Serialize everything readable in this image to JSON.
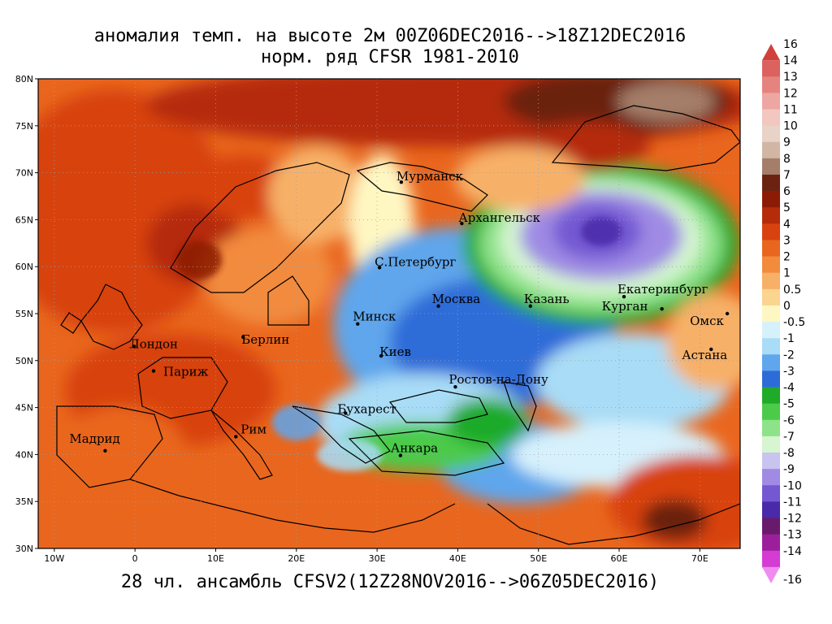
{
  "header": {
    "title_line1": "аномалия темп. на высоте 2м 00Z06DEC2016-->18Z12DEC2016",
    "title_line2": "норм. ряд CFSR 1981-2010"
  },
  "footer": {
    "caption": "28 чл. ансамбль CFSV2(12Z28NOV2016-->06Z05DEC2016)"
  },
  "map": {
    "lon_range": [
      -12,
      75
    ],
    "lat_range": [
      30,
      80
    ],
    "lon_ticks": [
      {
        "value": -10,
        "label": "10W"
      },
      {
        "value": 0,
        "label": "0"
      },
      {
        "value": 10,
        "label": "10E"
      },
      {
        "value": 20,
        "label": "20E"
      },
      {
        "value": 30,
        "label": "30E"
      },
      {
        "value": 40,
        "label": "40E"
      },
      {
        "value": 50,
        "label": "50E"
      },
      {
        "value": 60,
        "label": "60E"
      },
      {
        "value": 70,
        "label": "70E"
      }
    ],
    "lat_ticks": [
      {
        "value": 30,
        "label": "30N"
      },
      {
        "value": 35,
        "label": "35N"
      },
      {
        "value": 40,
        "label": "40N"
      },
      {
        "value": 45,
        "label": "45N"
      },
      {
        "value": 50,
        "label": "50N"
      },
      {
        "value": 55,
        "label": "55N"
      },
      {
        "value": 60,
        "label": "60N"
      },
      {
        "value": 65,
        "label": "65N"
      },
      {
        "value": 70,
        "label": "70N"
      },
      {
        "value": 75,
        "label": "75N"
      },
      {
        "value": 80,
        "label": "80N"
      }
    ],
    "cities": [
      {
        "name": "Мурманск",
        "lon": 33,
        "lat": 69,
        "dx": -6,
        "dy": -2
      },
      {
        "name": "Архангельск",
        "lon": 40.5,
        "lat": 64.6,
        "dx": -4,
        "dy": -2
      },
      {
        "name": "С.Петербург",
        "lon": 30.3,
        "lat": 59.9,
        "dx": -6,
        "dy": -2
      },
      {
        "name": "Москва",
        "lon": 37.6,
        "lat": 55.8,
        "dx": -8,
        "dy": -4
      },
      {
        "name": "Казань",
        "lon": 49,
        "lat": 55.8,
        "dx": -8,
        "dy": -4
      },
      {
        "name": "Екатеринбург",
        "lon": 60.6,
        "lat": 56.8,
        "dx": -8,
        "dy": -4
      },
      {
        "name": "Курган",
        "lon": 65.3,
        "lat": 55.5,
        "dx": -74,
        "dy": 2
      },
      {
        "name": "Омск",
        "lon": 73.4,
        "lat": 55,
        "dx": -46,
        "dy": 14
      },
      {
        "name": "Астана",
        "lon": 71.4,
        "lat": 51.2,
        "dx": -36,
        "dy": 12
      },
      {
        "name": "Минск",
        "lon": 27.6,
        "lat": 53.9,
        "dx": -6,
        "dy": -4
      },
      {
        "name": "Берлин",
        "lon": 13.4,
        "lat": 52.5,
        "dx": -2,
        "dy": 8
      },
      {
        "name": "Лондон",
        "lon": -0.1,
        "lat": 51.5,
        "dx": -6,
        "dy": 2
      },
      {
        "name": "Париж",
        "lon": 2.3,
        "lat": 48.9,
        "dx": 12,
        "dy": 6
      },
      {
        "name": "Киев",
        "lon": 30.5,
        "lat": 50.5,
        "dx": -2,
        "dy": 0
      },
      {
        "name": "Ростов-на-Дону",
        "lon": 39.7,
        "lat": 47.2,
        "dx": -8,
        "dy": -4
      },
      {
        "name": "Бухарест",
        "lon": 26.1,
        "lat": 44.4,
        "dx": -10,
        "dy": 0
      },
      {
        "name": "Рим",
        "lon": 12.5,
        "lat": 41.9,
        "dx": 6,
        "dy": -4
      },
      {
        "name": "Мадрид",
        "lon": -3.7,
        "lat": 40.4,
        "dx": -44,
        "dy": -10
      },
      {
        "name": "Анкара",
        "lon": 32.9,
        "lat": 39.9,
        "dx": -12,
        "dy": -4
      }
    ]
  },
  "legend": {
    "items": [
      {
        "label": "16",
        "color": "#d0413d"
      },
      {
        "label": "14",
        "color": "#db625e"
      },
      {
        "label": "13",
        "color": "#e5837f"
      },
      {
        "label": "12",
        "color": "#eea6a2"
      },
      {
        "label": "11",
        "color": "#f2c7c0"
      },
      {
        "label": "10",
        "color": "#e9d2c7"
      },
      {
        "label": "9",
        "color": "#d1b6a5"
      },
      {
        "label": "8",
        "color": "#a47e69"
      },
      {
        "label": "7",
        "color": "#6b2311"
      },
      {
        "label": "6",
        "color": "#8c1b05"
      },
      {
        "label": "5",
        "color": "#b52c0a"
      },
      {
        "label": "4",
        "color": "#d8420f"
      },
      {
        "label": "3",
        "color": "#e9661e"
      },
      {
        "label": "2",
        "color": "#f28b3c"
      },
      {
        "label": "1",
        "color": "#f7b067"
      },
      {
        "label": "0.5",
        "color": "#fbd48f"
      },
      {
        "label": "0",
        "color": "#fff7c2"
      },
      {
        "label": "-0.5",
        "color": "#d6f1fc"
      },
      {
        "label": "-1",
        "color": "#a9dcf6"
      },
      {
        "label": "-2",
        "color": "#5fa6ec"
      },
      {
        "label": "-3",
        "color": "#2d6cd8"
      },
      {
        "label": "-4",
        "color": "#1faa2a"
      },
      {
        "label": "-5",
        "color": "#4ccb4a"
      },
      {
        "label": "-6",
        "color": "#8ee289"
      },
      {
        "label": "-7",
        "color": "#d6f5d1"
      },
      {
        "label": "-8",
        "color": "#c9c3f0"
      },
      {
        "label": "-9",
        "color": "#9f8be4"
      },
      {
        "label": "-10",
        "color": "#7358d2"
      },
      {
        "label": "-11",
        "color": "#4a2aa8"
      },
      {
        "label": "-12",
        "color": "#6a1a6a"
      },
      {
        "label": "-13",
        "color": "#9b1f9b"
      },
      {
        "label": "-14",
        "color": "#d43cd4"
      },
      {
        "label": "-16",
        "color": "#f08cf0"
      }
    ]
  }
}
